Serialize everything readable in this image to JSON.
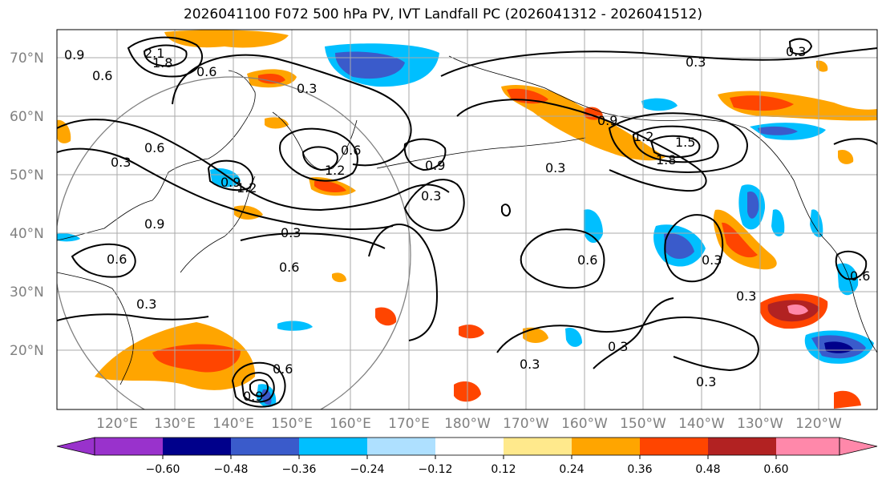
{
  "title": "2026041100 F072 500 hPa PV, IVT Landfall PC (2026041312 - 2026041512)",
  "map": {
    "lon_labels": [
      "120°E",
      "130°E",
      "140°E",
      "150°E",
      "160°E",
      "170°E",
      "180°W",
      "170°W",
      "160°W",
      "150°W",
      "140°W",
      "130°W",
      "120°W"
    ],
    "lat_labels": [
      "70°N",
      "60°N",
      "50°N",
      "40°N",
      "30°N",
      "20°N"
    ],
    "contour_labels": [
      "0.9",
      "0.6",
      "2.1",
      "1.8",
      "0.6",
      "0.3",
      "0.6",
      "0.3",
      "0.9",
      "0.6",
      "1.2",
      "0.9",
      "1.2",
      "0.9",
      "0.3",
      "0.3",
      "0.6",
      "0.3",
      "0.6",
      "0.3",
      "0.9",
      "1.2",
      "1.5",
      "1.8",
      "0.3",
      "0.6",
      "0.3",
      "0.3",
      "0.6",
      "0.3",
      "0.3",
      "0.9",
      "0.3",
      "0.3",
      "0.6"
    ]
  },
  "colorbar": {
    "colors": [
      "#9932CC",
      "#00008B",
      "#3A5BCB",
      "#00BFFF",
      "#AEE0FF",
      "#FFFFFF",
      "#FFE98C",
      "#FFA500",
      "#FF4500",
      "#B22222",
      "#FF88AA"
    ],
    "tick_labels": [
      "−0.60",
      "−0.48",
      "−0.36",
      "−0.24",
      "−0.12",
      "0.12",
      "0.24",
      "0.36",
      "0.48",
      "0.60"
    ]
  }
}
